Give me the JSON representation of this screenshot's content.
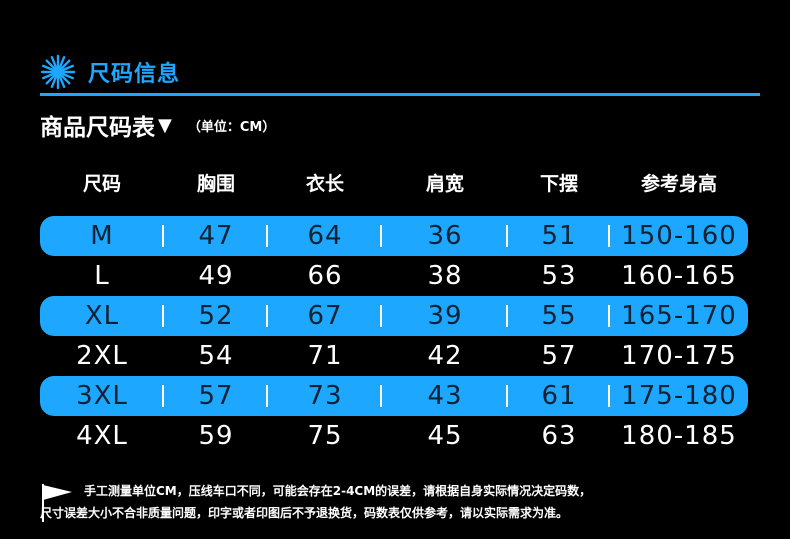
{
  "header": {
    "title": "尺码信息"
  },
  "subtitle": {
    "text": "商品尺码表",
    "arrow": "▼",
    "unit": "（单位：CM）"
  },
  "table": {
    "columns": [
      "尺码",
      "胸围",
      "衣长",
      "肩宽",
      "下摆",
      "参考身高"
    ],
    "rows": [
      {
        "size": "M",
        "chest": "47",
        "length": "64",
        "shoulder": "36",
        "hem": "51",
        "height": "150-160",
        "style": "blue"
      },
      {
        "size": "L",
        "chest": "49",
        "length": "66",
        "shoulder": "38",
        "hem": "53",
        "height": "160-165",
        "style": "dark"
      },
      {
        "size": "XL",
        "chest": "52",
        "length": "67",
        "shoulder": "39",
        "hem": "55",
        "height": "165-170",
        "style": "blue"
      },
      {
        "size": "2XL",
        "chest": "54",
        "length": "71",
        "shoulder": "42",
        "hem": "57",
        "height": "170-175",
        "style": "dark"
      },
      {
        "size": "3XL",
        "chest": "57",
        "length": "73",
        "shoulder": "43",
        "hem": "61",
        "height": "175-180",
        "style": "blue"
      },
      {
        "size": "4XL",
        "chest": "59",
        "length": "75",
        "shoulder": "45",
        "hem": "63",
        "height": "180-185",
        "style": "dark"
      }
    ]
  },
  "notes": {
    "line1": "手工测量单位CM，压线车口不同，可能会存在2-4CM的误差，请根据自身实际情况决定码数，",
    "line2": "尺寸误差大小不合非质量问题，印字或者印图后不予退换货，码数表仅供参考，请以实际需求为准。"
  },
  "colors": {
    "accent": "#1ea7ff",
    "background": "#000000"
  },
  "icons": {
    "header": "starburst-icon",
    "notes": "flag-icon"
  }
}
